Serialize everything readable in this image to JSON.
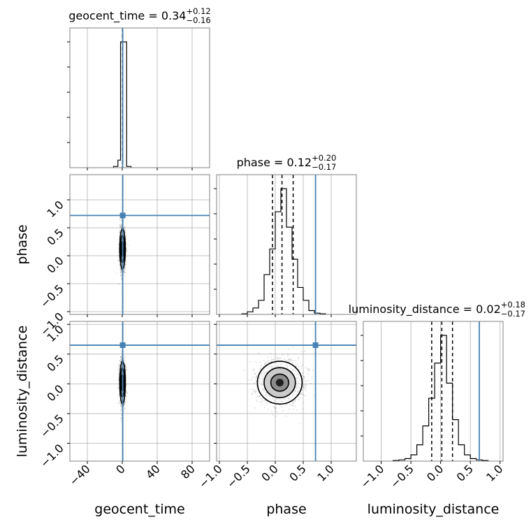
{
  "chart_data": {
    "type": "corner",
    "parameters": [
      "geocent_time",
      "phase",
      "luminosity_distance"
    ],
    "truths": {
      "geocent_time": 0.5,
      "phase": 0.72,
      "luminosity_distance": 0.65
    },
    "truth_color": "#4682b4",
    "grid": true,
    "titles": [
      {
        "param": "geocent_time",
        "text": "geocent_time = 0.34",
        "sup": "+0.12",
        "sub": "−0.16"
      },
      {
        "param": "phase",
        "text": "phase = 0.12",
        "sup": "+0.20",
        "sub": "−0.17"
      },
      {
        "param": "luminosity_distance",
        "text": "luminosity_distance = 0.02",
        "sup": "+0.18",
        "sub": "−0.17"
      }
    ],
    "axis_labels": {
      "geocent_time": "geocent_time",
      "phase": "phase",
      "luminosity_distance": "luminosity_distance"
    },
    "ranges": {
      "geocent_time": [
        -60,
        100
      ],
      "phase": [
        -1.05,
        1.45
      ],
      "luminosity_distance": [
        -1.3,
        1.05
      ]
    },
    "ticks": {
      "geocent_time": {
        "values": [
          -40,
          0,
          40,
          80
        ],
        "labels": [
          "−40",
          "0",
          "40",
          "80"
        ]
      },
      "phase": {
        "values": [
          -1.0,
          -0.5,
          0.0,
          0.5,
          1.0
        ],
        "labels": [
          "−1.0",
          "−0.5",
          "0.0",
          "0.5",
          "1.0"
        ]
      },
      "luminosity_distance": {
        "values": [
          -1.0,
          -0.5,
          0.0,
          0.5,
          1.0
        ],
        "labels": [
          "−1.0",
          "−0.5",
          "0.0",
          "0.5",
          "1.0"
        ]
      }
    },
    "histograms": {
      "geocent_time": {
        "bin_edges": [
          -10,
          -5,
          -2,
          5,
          10
        ],
        "counts": [
          0.01,
          0.06,
          1.0,
          0.01
        ],
        "quantiles": [
          0.18,
          0.34,
          0.46
        ]
      },
      "phase": {
        "bin_edges": [
          -0.6,
          -0.5,
          -0.4,
          -0.3,
          -0.2,
          -0.1,
          0.0,
          0.1,
          0.2,
          0.3,
          0.4,
          0.5,
          0.6,
          0.7,
          0.8,
          0.9
        ],
        "counts": [
          0.005,
          0.02,
          0.05,
          0.11,
          0.31,
          0.51,
          0.8,
          0.98,
          0.68,
          0.43,
          0.21,
          0.11,
          0.03,
          0.01,
          0.005
        ],
        "quantiles": [
          -0.05,
          0.12,
          0.32
        ]
      },
      "luminosity_distance": {
        "bin_edges": [
          -0.8,
          -0.7,
          -0.6,
          -0.5,
          -0.4,
          -0.3,
          -0.2,
          -0.1,
          0.0,
          0.1,
          0.2,
          0.3,
          0.4,
          0.5,
          0.6,
          0.7,
          0.8
        ],
        "counts": [
          0.005,
          0.01,
          0.02,
          0.05,
          0.13,
          0.28,
          0.5,
          0.78,
          1.0,
          0.62,
          0.33,
          0.13,
          0.05,
          0.02,
          0.01,
          0.005
        ],
        "quantiles": [
          -0.15,
          0.02,
          0.2
        ]
      }
    },
    "pairs": [
      {
        "x": "geocent_time",
        "y": "phase",
        "center": [
          0.3,
          0.12
        ],
        "spread": [
          1.6,
          0.18
        ]
      },
      {
        "x": "geocent_time",
        "y": "luminosity_distance",
        "center": [
          0.3,
          0.02
        ],
        "spread": [
          1.6,
          0.18
        ]
      },
      {
        "x": "phase",
        "y": "luminosity_distance",
        "center": [
          0.08,
          0.02
        ],
        "spread": [
          0.2,
          0.18
        ]
      }
    ]
  }
}
